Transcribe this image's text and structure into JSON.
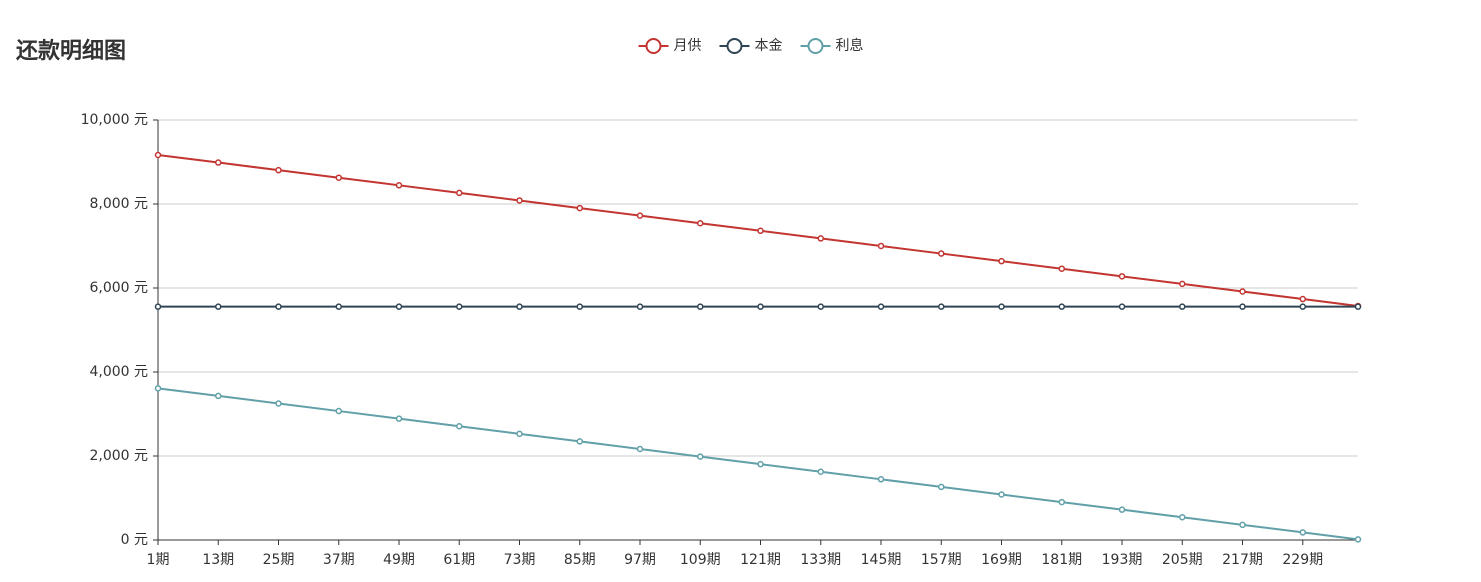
{
  "chart_data": {
    "type": "line",
    "title": "还款明细图",
    "x": [
      1,
      13,
      25,
      37,
      49,
      61,
      73,
      85,
      97,
      109,
      121,
      133,
      145,
      157,
      169,
      181,
      193,
      205,
      217,
      229,
      240
    ],
    "xlim": [
      1,
      240
    ],
    "xticks": [
      {
        "value": 1,
        "label": "1期"
      },
      {
        "value": 13,
        "label": "13期"
      },
      {
        "value": 25,
        "label": "25期"
      },
      {
        "value": 37,
        "label": "37期"
      },
      {
        "value": 49,
        "label": "49期"
      },
      {
        "value": 61,
        "label": "61期"
      },
      {
        "value": 73,
        "label": "73期"
      },
      {
        "value": 85,
        "label": "85期"
      },
      {
        "value": 97,
        "label": "97期"
      },
      {
        "value": 109,
        "label": "109期"
      },
      {
        "value": 121,
        "label": "121期"
      },
      {
        "value": 133,
        "label": "133期"
      },
      {
        "value": 145,
        "label": "145期"
      },
      {
        "value": 157,
        "label": "157期"
      },
      {
        "value": 169,
        "label": "169期"
      },
      {
        "value": 181,
        "label": "181期"
      },
      {
        "value": 193,
        "label": "193期"
      },
      {
        "value": 205,
        "label": "205期"
      },
      {
        "value": 217,
        "label": "217期"
      },
      {
        "value": 229,
        "label": "229期"
      }
    ],
    "ylim": [
      0,
      10000
    ],
    "yticks": [
      {
        "value": 0,
        "label": "0 元"
      },
      {
        "value": 2000,
        "label": "2,000 元"
      },
      {
        "value": 4000,
        "label": "4,000 元"
      },
      {
        "value": 6000,
        "label": "6,000 元"
      },
      {
        "value": 8000,
        "label": "8,000 元"
      },
      {
        "value": 10000,
        "label": "10,000 元"
      }
    ],
    "grid": true,
    "series": [
      {
        "name": "月供",
        "color": "#c23531",
        "values": [
          9167,
          8987,
          8806,
          8626,
          8445,
          8264,
          8084,
          7903,
          7723,
          7542,
          7362,
          7181,
          7001,
          6820,
          6639,
          6459,
          6278,
          6098,
          5917,
          5737,
          5571
        ]
      },
      {
        "name": "本金",
        "color": "#2f4554",
        "values": [
          5556,
          5556,
          5556,
          5556,
          5556,
          5556,
          5556,
          5556,
          5556,
          5556,
          5556,
          5556,
          5556,
          5556,
          5556,
          5556,
          5556,
          5556,
          5556,
          5556,
          5556
        ]
      },
      {
        "name": "利息",
        "color": "#61a0a8",
        "values": [
          3611,
          3431,
          3250,
          3070,
          2889,
          2708,
          2528,
          2347,
          2167,
          1986,
          1806,
          1625,
          1445,
          1264,
          1083,
          903,
          722,
          542,
          361,
          181,
          15
        ]
      }
    ]
  }
}
